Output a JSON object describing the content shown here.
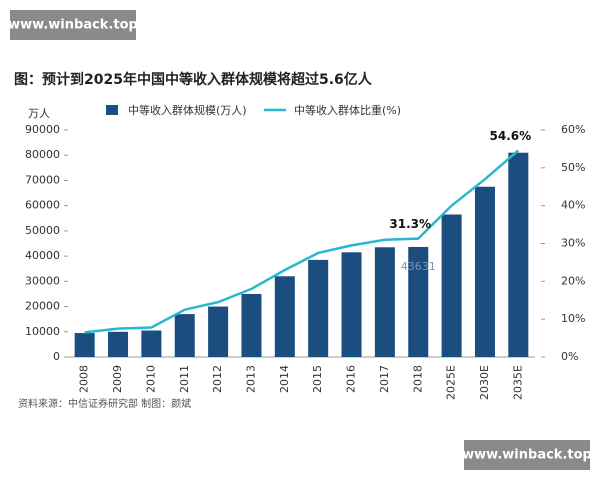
{
  "watermarks": [
    "www.winback.top",
    "www.winback.top"
  ],
  "chart_data": {
    "type": "bar-line",
    "title": "图：预计到2025年中国中等收入群体规模将超过5.6亿人",
    "y_axis_label": "万人",
    "source": "资料来源：中信证券研究部    制图：颜斌",
    "categories": [
      "2008",
      "2009",
      "2010",
      "2011",
      "2012",
      "2013",
      "2014",
      "2015",
      "2016",
      "2017",
      "2018",
      "2025E",
      "2030E",
      "2035E"
    ],
    "ylim": [
      0,
      90000
    ],
    "yticks": [
      0,
      10000,
      20000,
      30000,
      40000,
      50000,
      60000,
      70000,
      80000,
      90000
    ],
    "y2lim": [
      0,
      60
    ],
    "y2ticks": [
      {
        "value": 0,
        "label": "0%"
      },
      {
        "value": 10,
        "label": "10%"
      },
      {
        "value": 20,
        "label": "20%"
      },
      {
        "value": 30,
        "label": "30%"
      },
      {
        "value": 40,
        "label": "40%"
      },
      {
        "value": 50,
        "label": "50%"
      },
      {
        "value": 60,
        "label": "60%"
      }
    ],
    "series": [
      {
        "name": "中等收入群体规模(万人)",
        "type": "bar",
        "color": "#1b4e7e",
        "values": [
          9500,
          10000,
          10500,
          17000,
          20000,
          25000,
          32000,
          38500,
          41500,
          43500,
          43631,
          56500,
          67500,
          81000
        ],
        "value_labels": [
          null,
          null,
          null,
          null,
          null,
          null,
          null,
          null,
          null,
          null,
          "43631",
          null,
          null,
          null
        ]
      },
      {
        "name": "中等收入群体比重(%)",
        "type": "line",
        "axis": "y2",
        "color": "#29b6cf",
        "values": [
          6.5,
          7.5,
          7.8,
          12.5,
          14.5,
          18,
          23,
          27.5,
          29.5,
          31,
          31.3,
          40,
          47,
          54.6
        ],
        "value_labels": [
          null,
          null,
          null,
          null,
          null,
          null,
          null,
          null,
          null,
          null,
          "31.3%",
          null,
          null,
          "54.6%"
        ]
      }
    ]
  }
}
